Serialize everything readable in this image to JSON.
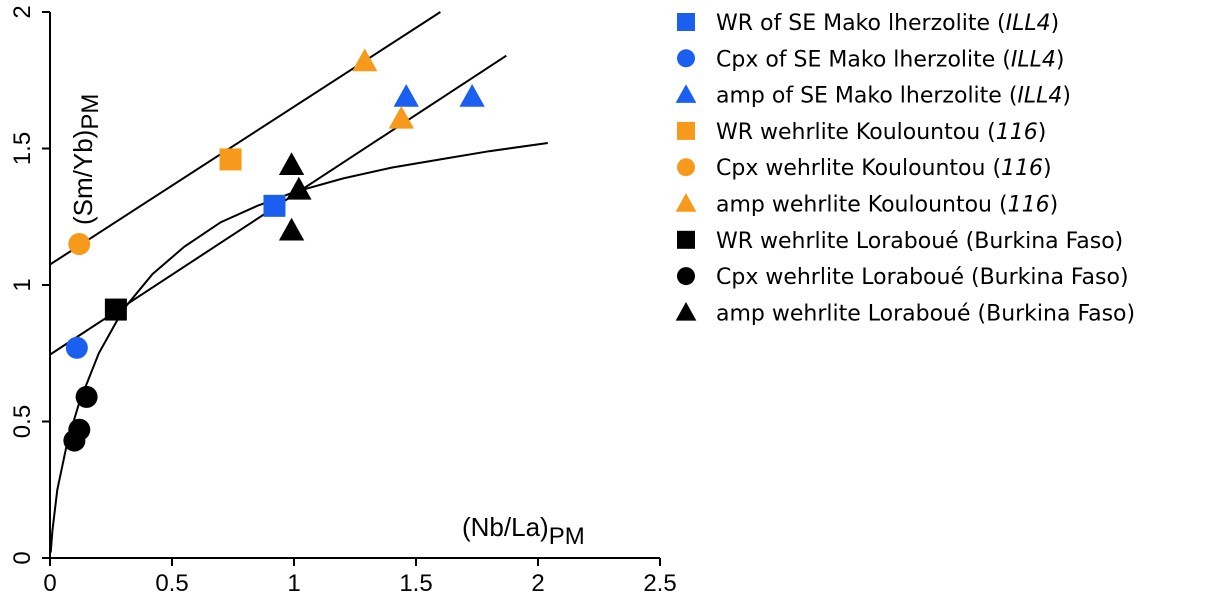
{
  "chart_data": {
    "type": "scatter",
    "title": "",
    "xlabel": {
      "main": "(Nb/La)",
      "sub": "PM"
    },
    "ylabel": {
      "main": "(Sm/Yb)",
      "sub": "PM"
    },
    "xlim": [
      0,
      2.5
    ],
    "ylim": [
      0,
      2
    ],
    "xticks": [
      "0",
      "0.5",
      "1",
      "1.5",
      "2",
      "2.5"
    ],
    "yticks": [
      "0",
      "0.5",
      "1",
      "1.5",
      "2"
    ],
    "grid": false,
    "legend_position": "right",
    "colors": {
      "blue": "#1a5ff0",
      "orange": "#f79a1b",
      "black": "#000000"
    },
    "series": [
      {
        "name": "WR of SE Mako lherzolite",
        "ref": "ILL4",
        "marker": "square",
        "color": "#1a5ff0",
        "points": [
          [
            0.92,
            1.29
          ]
        ]
      },
      {
        "name": "Cpx of SE Mako lherzolite",
        "ref": "ILL4",
        "marker": "circle",
        "color": "#1a5ff0",
        "points": [
          [
            0.11,
            0.77
          ]
        ]
      },
      {
        "name": "amp of SE Mako lherzolite",
        "ref": "ILL4",
        "marker": "triangle",
        "color": "#1a5ff0",
        "points": [
          [
            1.46,
            1.69
          ],
          [
            1.73,
            1.69
          ]
        ]
      },
      {
        "name": "WR wehrlite Koulountou",
        "ref": "116",
        "marker": "square",
        "color": "#f79a1b",
        "points": [
          [
            0.74,
            1.46
          ]
        ]
      },
      {
        "name": "Cpx wehrlite Koulountou",
        "ref": "116",
        "marker": "circle",
        "color": "#f79a1b",
        "points": [
          [
            0.12,
            1.15
          ]
        ]
      },
      {
        "name": "amp wehrlite Koulountou",
        "ref": "116",
        "marker": "triangle",
        "color": "#f79a1b",
        "points": [
          [
            1.29,
            1.82
          ],
          [
            1.44,
            1.61
          ]
        ]
      },
      {
        "name": "WR wehrlite Loraboué (Burkina Faso)",
        "ref": "",
        "marker": "square",
        "color": "#000000",
        "points": [
          [
            0.27,
            0.91
          ]
        ]
      },
      {
        "name": "Cpx wehrlite Loraboué (Burkina Faso)",
        "ref": "",
        "marker": "circle",
        "color": "#000000",
        "points": [
          [
            0.15,
            0.59
          ],
          [
            0.12,
            0.47
          ],
          [
            0.1,
            0.43
          ]
        ]
      },
      {
        "name": "amp wehrlite Loraboué (Burkina Faso)",
        "ref": "",
        "marker": "triangle",
        "color": "#000000",
        "points": [
          [
            0.99,
            1.44
          ],
          [
            1.02,
            1.35
          ],
          [
            0.99,
            1.2
          ]
        ]
      }
    ],
    "trend_lines": [
      {
        "from": [
          0,
          1.075
        ],
        "to": [
          1.6,
          2.0
        ]
      },
      {
        "from": [
          0,
          0.745
        ],
        "to": [
          1.87,
          1.84
        ]
      }
    ],
    "trend_curve": {
      "points": [
        [
          0.003,
          0.02
        ],
        [
          0.01,
          0.1
        ],
        [
          0.03,
          0.25
        ],
        [
          0.07,
          0.42
        ],
        [
          0.12,
          0.57
        ],
        [
          0.2,
          0.75
        ],
        [
          0.3,
          0.91
        ],
        [
          0.42,
          1.04
        ],
        [
          0.55,
          1.14
        ],
        [
          0.7,
          1.23
        ],
        [
          0.85,
          1.29
        ],
        [
          1.0,
          1.34
        ],
        [
          1.2,
          1.39
        ],
        [
          1.4,
          1.43
        ],
        [
          1.6,
          1.46
        ],
        [
          1.8,
          1.49
        ],
        [
          2.04,
          1.52
        ]
      ]
    }
  }
}
